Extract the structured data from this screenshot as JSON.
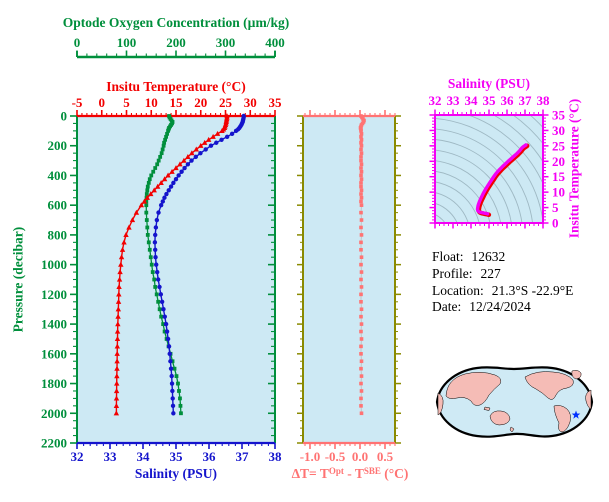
{
  "colors": {
    "green": "#008f3c",
    "red": "#f20000",
    "blue": "#1414cc",
    "magenta": "#f400f4",
    "salmon": "#ff7373",
    "olive": "#8a8a00",
    "panel_bg": "#cde9f4",
    "contour_gray": "#9fb9c4",
    "connector_gray": "#c0c0c0",
    "map_land": "#f5bcb6",
    "map_ocean": "#cfeaf5",
    "map_outline": "#000000",
    "star_blue": "#0030ff",
    "text_black": "#000000"
  },
  "main_plot": {
    "oxygen_title": "Optode Oxygen Concentration (µm/kg)",
    "temperature_title": "Insitu Temperature (°C)",
    "salinity_title": "Salinity (PSU)",
    "pressure_title": "Pressure (decibar)",
    "oxygen_axis": {
      "min": 0,
      "max": 400,
      "major": 100,
      "minor": 20,
      "labels": [
        "0",
        "100",
        "200",
        "300",
        "400"
      ]
    },
    "temperature_axis": {
      "min": -5,
      "max": 35,
      "major": 5,
      "minor": 1,
      "labels": [
        "-5",
        "0",
        "5",
        "10",
        "15",
        "20",
        "25",
        "30",
        "35"
      ]
    },
    "salinity_axis": {
      "min": 32,
      "max": 38,
      "major": 1,
      "minor": 0.2,
      "labels": [
        "32",
        "33",
        "34",
        "35",
        "36",
        "37",
        "38"
      ]
    },
    "pressure_axis": {
      "min": 0,
      "max": 2200,
      "major": 200,
      "minor": 50,
      "labels": [
        "0",
        "200",
        "400",
        "600",
        "800",
        "1000",
        "1200",
        "1400",
        "1600",
        "1800",
        "2000",
        "2200"
      ]
    }
  },
  "delta_plot": {
    "title": {
      "pre": "ΔT= T",
      "sup1": "Opt",
      "mid": " - T",
      "sup2": "SBE",
      "post": " (°C)"
    },
    "x_axis": {
      "min": -1.14,
      "max": 0.7,
      "major": 0.5,
      "minor": 0.1,
      "labels": [
        "-1.0",
        "-0.5",
        "0.0",
        "0.5"
      ]
    }
  },
  "ts_plot": {
    "xlabel": "Salinity (PSU)",
    "ylabel": "Insitu Temperature (°C)",
    "salinity_axis": {
      "min": 32,
      "max": 38,
      "major": 1,
      "minor": 0.25,
      "labels": [
        "32",
        "33",
        "34",
        "35",
        "36",
        "37",
        "38"
      ]
    },
    "temperature_axis": {
      "min": 0,
      "max": 35,
      "major": 5,
      "minor": 1,
      "labels": [
        "0",
        "5",
        "10",
        "15",
        "20",
        "25",
        "30",
        "35"
      ]
    },
    "note": "temperature-vs-salinity curve drawn from profile series over gray isoline contours"
  },
  "info": {
    "rows": [
      {
        "label": "Float:",
        "value": "12632"
      },
      {
        "label": "Profile:",
        "value": "227"
      },
      {
        "label": "Location:",
        "value": "21.3°S  -22.9°E"
      },
      {
        "label": "Date:",
        "value": "12/24/2024"
      }
    ]
  },
  "map": {
    "description": "pacific-centered world map",
    "marker": "blue-star",
    "marker_color": "#0030ff"
  },
  "chart_data": {
    "type": "line",
    "title": "Float 12632 Profile 227 vertical profiles",
    "ylabel": "Pressure (decibar)",
    "ylim": [
      0,
      2200
    ],
    "y_inverted": true,
    "pressure_dbar": [
      0,
      10,
      20,
      30,
      40,
      50,
      60,
      70,
      80,
      90,
      100,
      120,
      140,
      160,
      180,
      200,
      225,
      250,
      275,
      300,
      325,
      350,
      375,
      400,
      425,
      450,
      475,
      500,
      525,
      550,
      575,
      600,
      650,
      700,
      750,
      800,
      850,
      900,
      950,
      1000,
      1050,
      1100,
      1150,
      1200,
      1250,
      1300,
      1350,
      1400,
      1450,
      1500,
      1550,
      1600,
      1650,
      1700,
      1750,
      1800,
      1850,
      1900,
      1950,
      2000
    ],
    "series": [
      {
        "name": "Insitu Temperature (°C)",
        "axis_range": [
          -5,
          35
        ],
        "color": "#f20000",
        "marker": "triangle",
        "values": [
          25.3,
          25.3,
          25.25,
          25.2,
          25.15,
          25.1,
          25.0,
          24.9,
          24.8,
          24.6,
          24.3,
          23.4,
          22.5,
          21.6,
          20.8,
          20.0,
          19.1,
          18.2,
          17.4,
          16.6,
          15.8,
          15.0,
          14.2,
          13.4,
          12.7,
          12.0,
          11.3,
          10.6,
          9.9,
          9.2,
          8.6,
          8.0,
          7.0,
          6.2,
          5.5,
          4.9,
          4.5,
          4.2,
          4.0,
          3.85,
          3.7,
          3.6,
          3.5,
          3.45,
          3.4,
          3.35,
          3.3,
          3.25,
          3.2,
          3.18,
          3.15,
          3.12,
          3.1,
          3.08,
          3.05,
          3.03,
          3.0,
          2.98,
          2.96,
          2.95
        ]
      },
      {
        "name": "Salinity (PSU)",
        "axis_range": [
          32,
          38
        ],
        "color": "#1414cc",
        "marker": "circle",
        "values": [
          37.05,
          37.05,
          37.04,
          37.03,
          37.02,
          37.0,
          36.98,
          36.95,
          36.92,
          36.88,
          36.82,
          36.7,
          36.55,
          36.38,
          36.22,
          36.06,
          35.9,
          35.74,
          35.6,
          35.47,
          35.36,
          35.26,
          35.17,
          35.08,
          35.0,
          34.92,
          34.85,
          34.78,
          34.71,
          34.65,
          34.6,
          34.55,
          34.47,
          34.42,
          34.39,
          34.37,
          34.36,
          34.37,
          34.38,
          34.4,
          34.43,
          34.46,
          34.5,
          34.54,
          34.58,
          34.62,
          34.66,
          34.7,
          34.73,
          34.76,
          34.79,
          34.81,
          34.83,
          34.85,
          34.87,
          34.88,
          34.89,
          34.9,
          34.91,
          34.92
        ]
      },
      {
        "name": "Optode Oxygen Concentration (µm/kg)",
        "axis_range": [
          0,
          400
        ],
        "color": "#008f3c",
        "marker": "square",
        "values": [
          186,
          187,
          189,
          191,
          193,
          192,
          190,
          188,
          186,
          185,
          184,
          182,
          180,
          178,
          176,
          175,
          173,
          171,
          168,
          165,
          162,
          158,
          154,
          150,
          147,
          145,
          143,
          142,
          141,
          140.5,
          140,
          140,
          140,
          141,
          142,
          143,
          145,
          147,
          149,
          151,
          153,
          156,
          158,
          161,
          164,
          167,
          170,
          174,
          177,
          181,
          185,
          189,
          193,
          197,
          201,
          204,
          206,
          208,
          209,
          210
        ]
      },
      {
        "name": "ΔT = T^Opt - T^SBE (°C)",
        "axis_range": [
          -1.14,
          0.7
        ],
        "color": "#ff7373",
        "marker": "square",
        "values": [
          0.02,
          0.04,
          0.06,
          0.08,
          0.07,
          0.05,
          0.03,
          0.02,
          0.01,
          0.02,
          0.02,
          0.03,
          0.02,
          0.03,
          0.02,
          0.03,
          0.02,
          0.03,
          0.02,
          0.02,
          0.03,
          0.02,
          0.03,
          0.02,
          0.03,
          0.02,
          0.02,
          0.03,
          0.02,
          0.03,
          0.02,
          0.03,
          0.02,
          0.03,
          0.02,
          0.03,
          0.02,
          0.02,
          0.03,
          0.02,
          0.03,
          0.02,
          0.03,
          0.02,
          0.02,
          0.03,
          0.02,
          0.03,
          0.02,
          0.03,
          0.02,
          0.02,
          0.03,
          0.02,
          0.03,
          0.02,
          0.03,
          0.02,
          0.02,
          0.03
        ]
      }
    ]
  }
}
